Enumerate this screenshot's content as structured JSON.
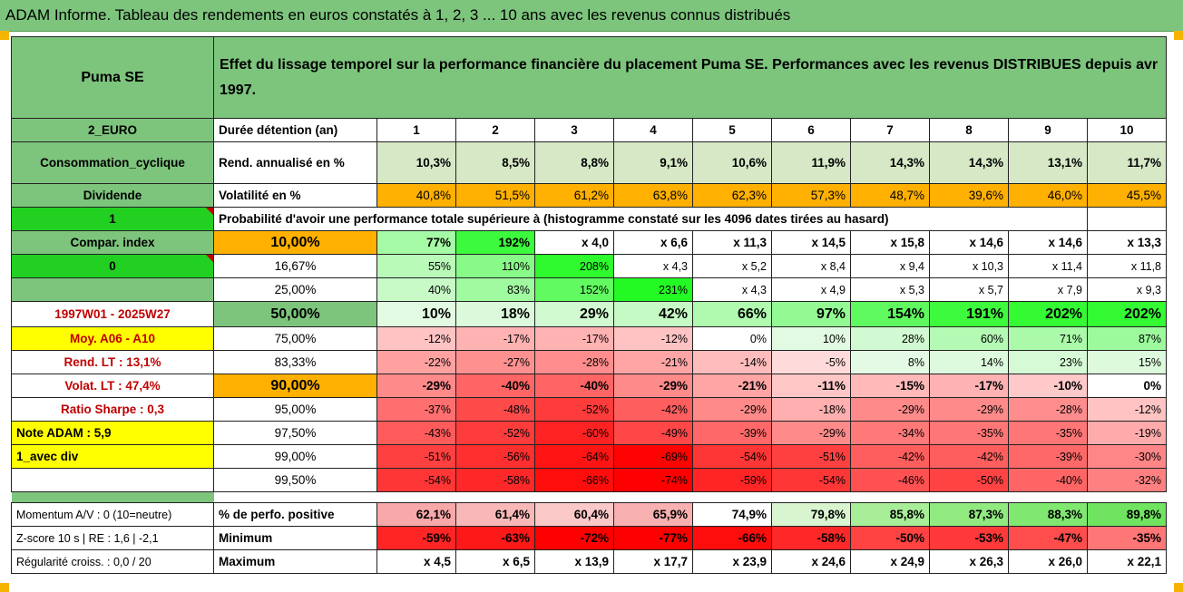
{
  "header_title": "ADAM Informe. Tableau des rendements en euros constatés à 1, 2, 3 ... 10 ans avec les revenus connus distribués",
  "company": "Puma SE",
  "subtitle": "Effet du lissage temporel sur la performance financière du placement Puma SE. Performances avec les revenus DISTRIBUES depuis avr 1997.",
  "side": {
    "currency": "2_EURO",
    "sector": "Consommation_cyclique",
    "dividende_label": "Dividende",
    "dividende_value": "1",
    "compar_index": "Compar. index",
    "index_value": "0",
    "period": "1997W01 - 2025W27",
    "moy": "Moy. A06 - A10",
    "rend_lt": "Rend. LT :   13,1%",
    "volat_lt": "Volat. LT :   47,4%",
    "ratio_sharpe": "Ratio Sharpe :   0,3",
    "note_adam": "Note ADAM : 5,9",
    "avec_div": "1_avec div"
  },
  "duree_label": "Durée détention (an)",
  "years": [
    "1",
    "2",
    "3",
    "4",
    "5",
    "6",
    "7",
    "8",
    "9",
    "10"
  ],
  "rend_label": "Rend. annualisé en %",
  "rend": [
    "10,3%",
    "8,5%",
    "8,8%",
    "9,1%",
    "10,6%",
    "11,9%",
    "14,3%",
    "14,3%",
    "13,1%",
    "11,7%"
  ],
  "vol_label": "Volatilité en %",
  "vol": [
    "40,8%",
    "51,5%",
    "61,2%",
    "63,8%",
    "62,3%",
    "57,3%",
    "48,7%",
    "39,6%",
    "46,0%",
    "45,5%"
  ],
  "proba_label": "Probabilité d'avoir une performance totale supérieure à (histogramme constaté sur les 4096 dates tirées au hasard)",
  "quantiles": [
    {
      "pct": "10,00%",
      "vals": [
        "77%",
        "192%",
        "x 4,0",
        "x 6,6",
        "x 11,3",
        "x 14,5",
        "x 15,8",
        "x 14,6",
        "x 14,6",
        "x 13,3"
      ]
    },
    {
      "pct": "16,67%",
      "vals": [
        "55%",
        "110%",
        "208%",
        "x 4,3",
        "x 5,2",
        "x 8,4",
        "x 9,4",
        "x 10,3",
        "x 11,4",
        "x 11,8"
      ]
    },
    {
      "pct": "25,00%",
      "vals": [
        "40%",
        "83%",
        "152%",
        "231%",
        "x 4,3",
        "x 4,9",
        "x 5,3",
        "x 5,7",
        "x 7,9",
        "x 9,3"
      ]
    },
    {
      "pct": "50,00%",
      "vals": [
        "10%",
        "18%",
        "29%",
        "42%",
        "66%",
        "97%",
        "154%",
        "191%",
        "202%",
        "202%"
      ]
    },
    {
      "pct": "75,00%",
      "vals": [
        "-12%",
        "-17%",
        "-17%",
        "-12%",
        "0%",
        "10%",
        "28%",
        "60%",
        "71%",
        "87%"
      ]
    },
    {
      "pct": "83,33%",
      "vals": [
        "-22%",
        "-27%",
        "-28%",
        "-21%",
        "-14%",
        "-5%",
        "8%",
        "14%",
        "23%",
        "15%"
      ]
    },
    {
      "pct": "90,00%",
      "vals": [
        "-29%",
        "-40%",
        "-40%",
        "-29%",
        "-21%",
        "-11%",
        "-15%",
        "-17%",
        "-10%",
        "0%"
      ]
    },
    {
      "pct": "95,00%",
      "vals": [
        "-37%",
        "-48%",
        "-52%",
        "-42%",
        "-29%",
        "-18%",
        "-29%",
        "-29%",
        "-28%",
        "-12%"
      ]
    },
    {
      "pct": "97,50%",
      "vals": [
        "-43%",
        "-52%",
        "-60%",
        "-49%",
        "-39%",
        "-29%",
        "-34%",
        "-35%",
        "-35%",
        "-19%"
      ]
    },
    {
      "pct": "99,00%",
      "vals": [
        "-51%",
        "-56%",
        "-64%",
        "-69%",
        "-54%",
        "-51%",
        "-42%",
        "-42%",
        "-39%",
        "-30%"
      ]
    },
    {
      "pct": "99,50%",
      "vals": [
        "-54%",
        "-58%",
        "-66%",
        "-74%",
        "-59%",
        "-54%",
        "-46%",
        "-50%",
        "-40%",
        "-32%"
      ]
    }
  ],
  "bottom": {
    "momentum": "Momentum A/V : 0 (10=neutre)",
    "zscore": "Z-score 10 s | RE : 1,6 | -2,1",
    "regularite": "Régularité croiss. : 0,0 / 20",
    "pos_label": "% de perfo. positive",
    "pos": [
      "62,1%",
      "61,4%",
      "60,4%",
      "65,9%",
      "74,9%",
      "79,8%",
      "85,8%",
      "87,3%",
      "88,3%",
      "89,8%"
    ],
    "min_label": "Minimum",
    "min": [
      "-59%",
      "-63%",
      "-72%",
      "-77%",
      "-66%",
      "-58%",
      "-50%",
      "-53%",
      "-47%",
      "-35%"
    ],
    "max_label": "Maximum",
    "max": [
      "x 4,5",
      "x 6,5",
      "x 13,9",
      "x 17,7",
      "x 23,9",
      "x 24,6",
      "x 24,9",
      "x 26,3",
      "x 26,0",
      "x 22,1"
    ]
  },
  "colors": {
    "green_header": "#7dc47d",
    "light_green": "#cfe7c2",
    "bright_green": "#22d022",
    "orange": "#ffb000",
    "yellow": "#ffff00",
    "dark_red": "#ff0000",
    "label_red": "#c00000"
  }
}
